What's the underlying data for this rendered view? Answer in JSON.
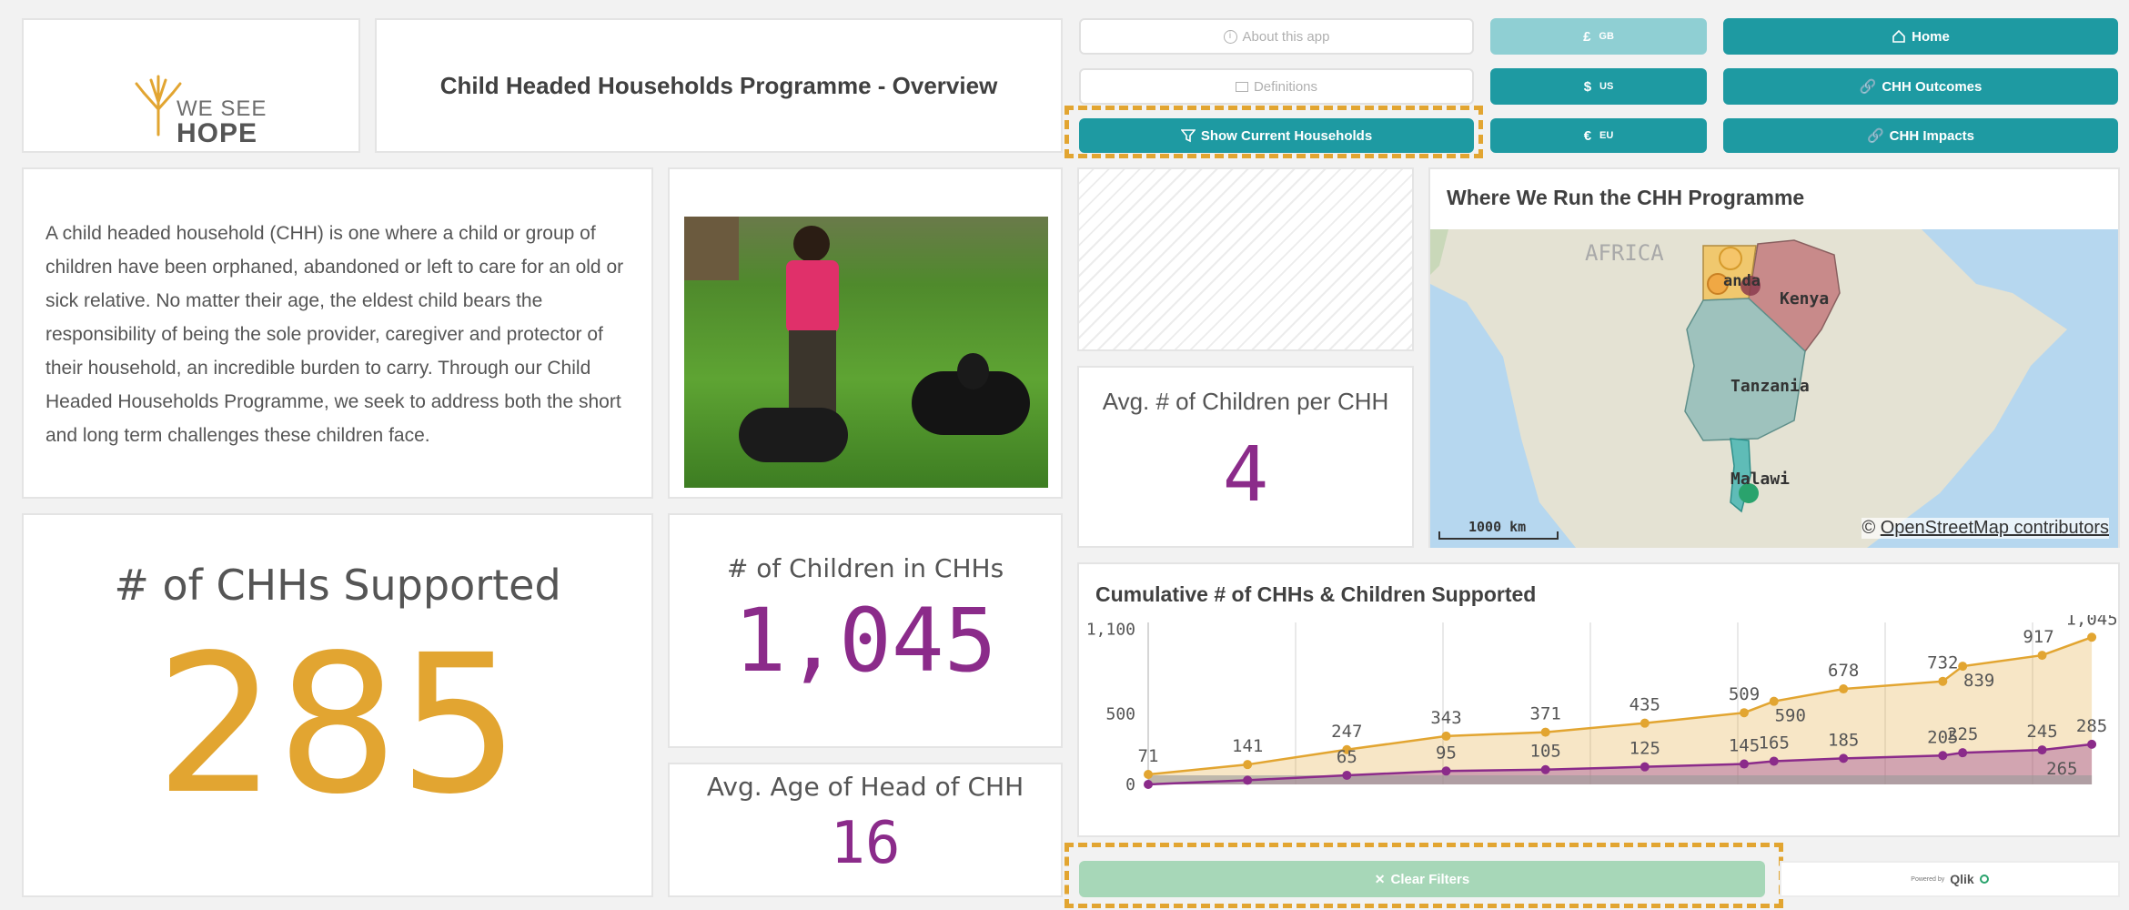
{
  "header": {
    "logo_line1": "WE SEE",
    "logo_line2": "HOPE",
    "title": "Child Headed Households Programme - Overview"
  },
  "buttons": {
    "about": "About this app",
    "definitions": "Definitions",
    "show_current": "Show Current Households",
    "gbp_symbol": "£",
    "gbp_code": "GB",
    "usd_symbol": "$",
    "usd_code": "US",
    "eur_symbol": "€",
    "eur_code": "EU",
    "home": "Home",
    "outcomes": "CHH Outcomes",
    "impacts": "CHH Impacts",
    "clear_filters": "Clear Filters"
  },
  "description": "A child headed household (CHH) is one where a child or group of children have been orphaned, abandoned or left to care for an old or sick relative. No matter their age, the eldest child bears the responsibility of being the sole provider, caregiver and protector of their household, an incredible burden to carry. Through our Child Headed Households Programme, we seek to address both the short and long term challenges these children face.",
  "kpis": {
    "chh_supported_label": "# of CHHs Supported",
    "chh_supported_value": "285",
    "children_label": "# of Children in CHHs",
    "children_value": "1,045",
    "avg_age_label": "Avg. Age of Head of CHH",
    "avg_age_value": "16",
    "avg_children_label": "Avg. # of Children per CHH",
    "avg_children_value": "4"
  },
  "map": {
    "title": "Where We Run the CHH Programme",
    "continent_label": "AFRICA",
    "countries": [
      "Uganda",
      "Kenya",
      "Tanzania",
      "Malawi"
    ],
    "uganda_visible": "anda",
    "scale_label": "1000 km",
    "attribution_prefix": "© ",
    "attribution_link": "OpenStreetMap contributors"
  },
  "footer": {
    "qlik_prefix": "Powered by",
    "qlik_label": "Qlik"
  },
  "colors": {
    "teal": "#1e9aa2",
    "orange": "#e2a531",
    "purple": "#8b2b8a"
  },
  "chart_data": {
    "type": "area",
    "title": "Cumulative # of CHHs & Children Supported",
    "yticks": [
      0,
      500,
      1100
    ],
    "ylim": [
      0,
      1150
    ],
    "series": [
      {
        "x": [
          0,
          1,
          2,
          3,
          4,
          5,
          6,
          6.3,
          7,
          8,
          8.2,
          9,
          9.5
        ],
        "values": [
          71,
          141,
          247,
          343,
          371,
          435,
          509,
          590,
          678,
          732,
          839,
          917,
          1045
        ],
        "color": "#e2a531"
      },
      {
        "x": [
          0,
          1,
          2,
          3,
          4,
          5,
          6,
          6.3,
          7,
          8,
          8.2,
          9,
          9.5
        ],
        "values": [
          0,
          30,
          65,
          95,
          105,
          125,
          145,
          165,
          185,
          205,
          225,
          245,
          285
        ],
        "labels": [
          "",
          "",
          "65",
          "95",
          "105",
          "125",
          "145",
          "165",
          "185",
          "205",
          "225",
          "245",
          "285"
        ],
        "color": "#8b2b8a"
      }
    ],
    "extra_label": "265"
  }
}
